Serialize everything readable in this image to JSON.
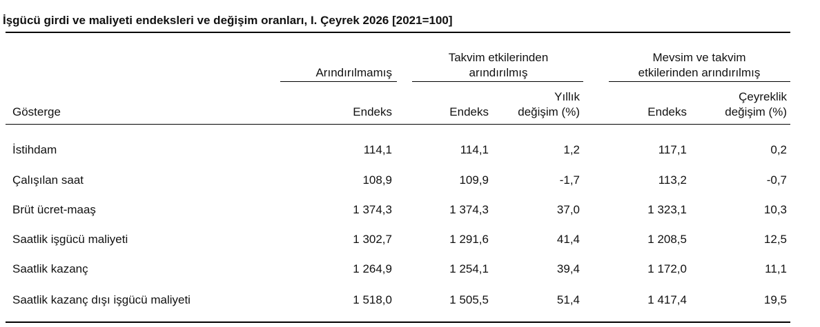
{
  "title": "İşgücü girdi ve maliyeti endeksleri ve değişim oranları, I. Çeyrek 2026 [2021=100]",
  "header_groups": [
    {
      "lines": [
        "Arındırılmamış"
      ]
    },
    {
      "lines": [
        "Takvim etkilerinden",
        "arındırılmış"
      ]
    },
    {
      "lines": [
        "Mevsim ve takvim",
        "etkilerinden arındırılmış"
      ]
    }
  ],
  "columns": [
    {
      "lines": [
        "Gösterge"
      ]
    },
    {
      "lines": [
        "Endeks"
      ]
    },
    {
      "lines": [
        "Endeks"
      ]
    },
    {
      "lines": [
        "Yıllık",
        "değişim (%)"
      ]
    },
    {
      "lines": [
        "Endeks"
      ]
    },
    {
      "lines": [
        "Çeyreklik",
        "değişim (%)"
      ]
    }
  ],
  "rows": [
    [
      "İstihdam",
      "114,1",
      "114,1",
      "1,2",
      "117,1",
      "0,2"
    ],
    [
      "Çalışılan saat",
      "108,9",
      "109,9",
      "-1,7",
      "113,2",
      "-0,7"
    ],
    [
      "Brüt ücret-maaş",
      "1 374,3",
      "1 374,3",
      "37,0",
      "1 323,1",
      "10,3"
    ],
    [
      "Saatlik işgücü maliyeti",
      "1 302,7",
      "1 291,6",
      "41,4",
      "1 208,5",
      "12,5"
    ],
    [
      "Saatlik kazanç",
      "1 264,9",
      "1 254,1",
      "39,4",
      "1 172,0",
      "11,1"
    ],
    [
      "Saatlik kazanç dışı işgücü maliyeti",
      "1 518,0",
      "1 505,5",
      "51,4",
      "1 417,4",
      "19,5"
    ]
  ]
}
